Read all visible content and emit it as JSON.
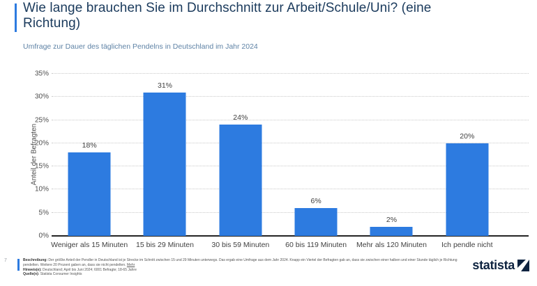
{
  "header": {
    "title": "Wie lange brauchen Sie im Durchschnitt zur Arbeit/Schule/Uni? (eine Richtung)",
    "subtitle": "Umfrage zur Dauer des täglichen Pendelns in Deutschland im Jahr 2024"
  },
  "chart_data": {
    "type": "bar",
    "categories": [
      "Weniger als 15 Minuten",
      "15 bis 29 Minuten",
      "30 bis 59 Minuten",
      "60 bis 119 Minuten",
      "Mehr als 120 Minuten",
      "Ich pendle nicht"
    ],
    "values": [
      18,
      31,
      24,
      6,
      2,
      20
    ],
    "value_labels": [
      "18%",
      "31%",
      "24%",
      "6%",
      "2%",
      "20%"
    ],
    "title": "Wie lange brauchen Sie im Durchschnitt zur Arbeit/Schule/Uni? (eine Richtung)",
    "xlabel": "",
    "ylabel": "Anteil der Befragten",
    "ylim": [
      0,
      35
    ],
    "yticks": [
      "0%",
      "5%",
      "10%",
      "15%",
      "20%",
      "25%",
      "30%",
      "35%"
    ],
    "grid": "horizontal-dotted",
    "legend": "none",
    "bar_color": "#2D7BE0"
  },
  "footer": {
    "footnote_marker": "7",
    "description_label": "Beschreibung:",
    "description_text": " Der größte Anteil der Pendler in Deutschland ist je Strecke im Schnitt zwischen 15 und 29 Minuten unterwegs. Das ergab eine Umfrage aus dem Jahr 2024. Knapp ein Viertel der Befragten gab an, dass sie zwischen einer halben und einer Stunde täglich je Richtung pendelten. Weitere 20 Prozent gaben an, dass sie nicht pendelten. ",
    "more_link": "Mehr",
    "hints_label": "Hinweis(e):",
    "hints_text": " Deutschland; April bis Juni 2024; 6001 Befragte; 18-65 Jahre",
    "source_label": "Quelle(n):",
    "source_text": " Statista Consumer Insights",
    "brand": "statista"
  },
  "colors": {
    "accent_blue": "#2D7BE0",
    "title_navy": "#1A3A5C",
    "subtitle_blue_gray": "#5E82A5",
    "brand_navy": "#0E2340",
    "axis_text": "#4E4E4E"
  }
}
